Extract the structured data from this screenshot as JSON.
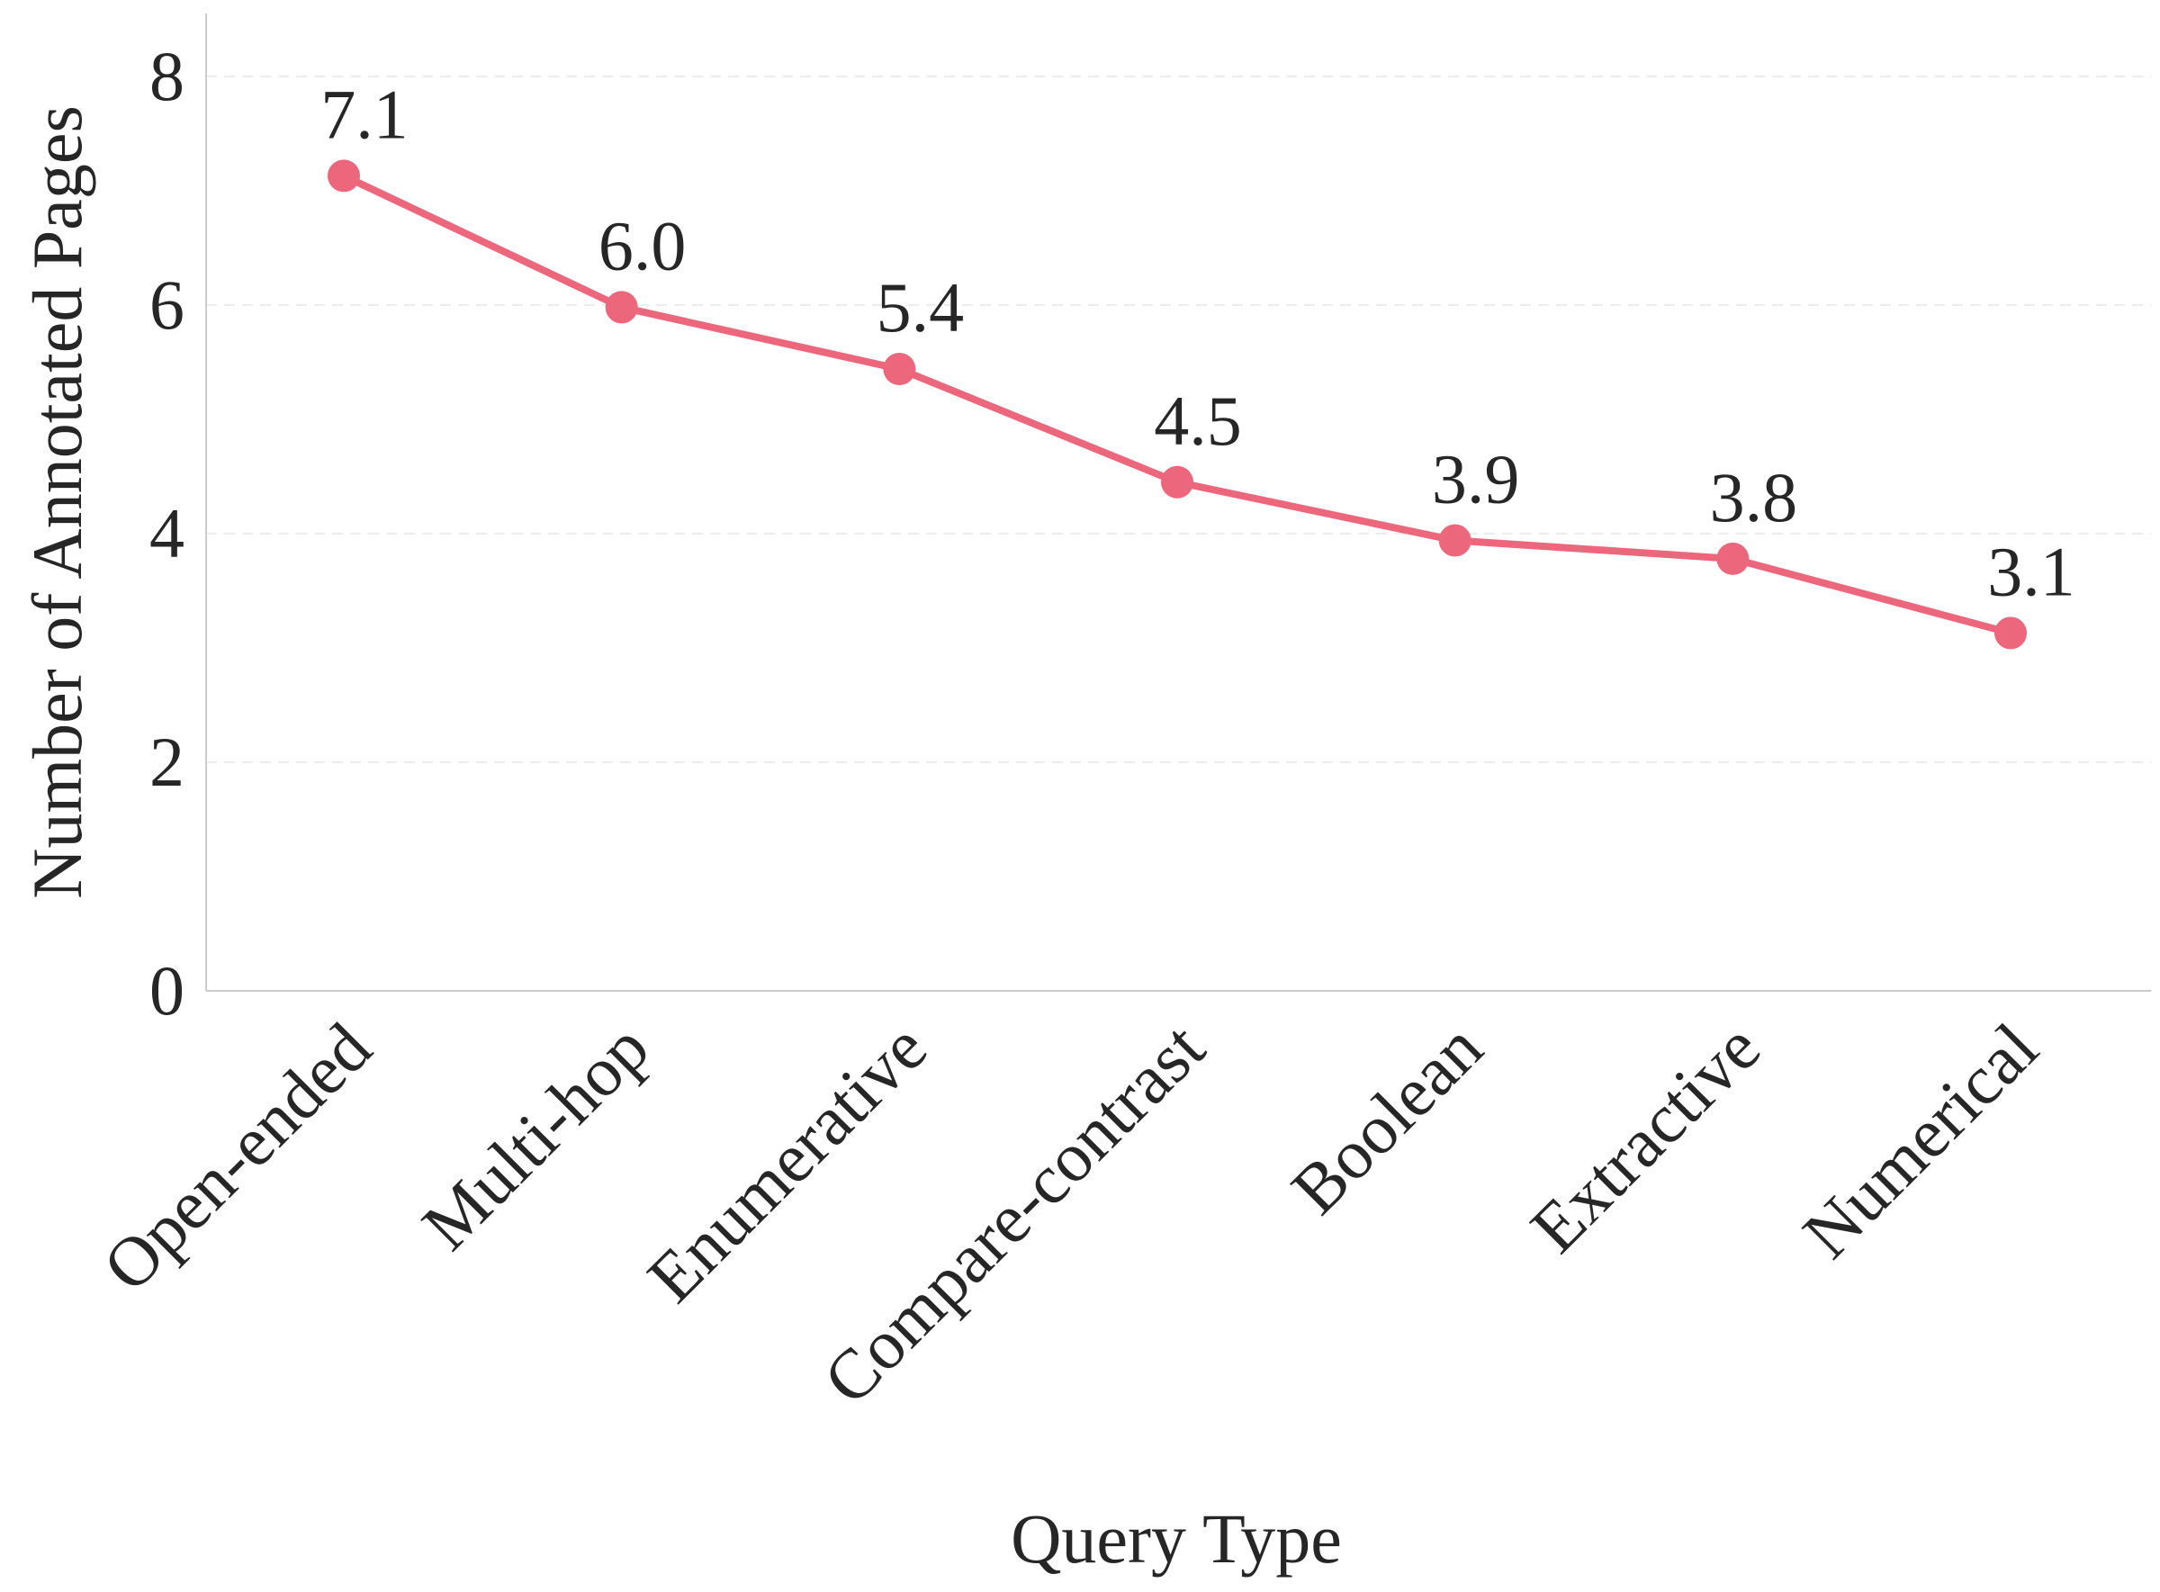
{
  "chart_data": {
    "type": "line",
    "xlabel": "Query Type",
    "ylabel": "Number of Annotated Pages",
    "categories": [
      "Open-ended",
      "Multi-hop",
      "Enumerative",
      "Compare-contrast",
      "Boolean",
      "Extractive",
      "Numerical"
    ],
    "series": [
      {
        "values": [
          7.13,
          5.98,
          5.44,
          4.45,
          3.94,
          3.78,
          3.13
        ],
        "value_labels": [
          "7.1",
          "6.0",
          "5.4",
          "4.5",
          "3.9",
          "3.8",
          "3.1"
        ],
        "color": "#ec667c"
      }
    ],
    "ylim": [
      0,
      8.55
    ],
    "yticks": [
      0,
      2,
      4,
      6,
      8
    ],
    "ytick_labels": [
      "0",
      "2",
      "4",
      "6",
      "8"
    ],
    "grid": "horizontal-dashed",
    "legend": "none"
  }
}
